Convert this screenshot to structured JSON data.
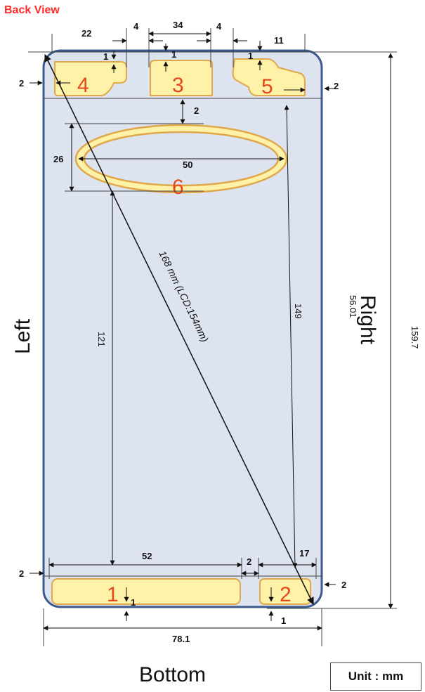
{
  "title": "Back View",
  "unit_label": "Unit : mm",
  "sides": {
    "left": "Left",
    "right": "Right",
    "bottom": "Bottom"
  },
  "zones": [
    "1",
    "2",
    "3",
    "4",
    "5",
    "6"
  ],
  "dimensions": {
    "top_zone4_width": "22",
    "top_gap_left": "4",
    "top_zone3_width": "34",
    "top_gap_right": "4",
    "top_zone5_width": "11",
    "zone4_top_offset": "1",
    "zone3_top_offset": "1",
    "zone5_top_offset": "1",
    "left_margin_top": "2",
    "right_margin_top": "2",
    "zone6_gap": "2",
    "zone6_height": "26",
    "zone6_width": "50",
    "diagonal": "168 mm  (LCD:154mm)",
    "left_vertical": "121",
    "right_vertical": "149",
    "inner_height": "56.01",
    "overall_height": "159.7",
    "bottom_zone1_width": "52",
    "bottom_gap": "2",
    "bottom_zone2_width": "17",
    "left_margin_bottom": "2",
    "right_margin_bottom": "2",
    "zone1_bottom_offset": "1",
    "zone2_bottom_offset": "1",
    "overall_width": "78.1"
  }
}
